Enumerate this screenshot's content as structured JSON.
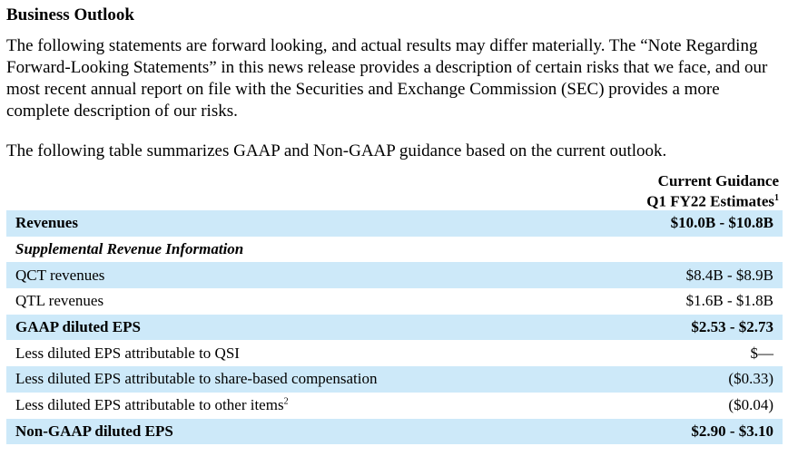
{
  "heading": "Business Outlook",
  "intro": "The following statements are forward looking, and actual results may differ materially.  The “Note Regarding Forward-Looking Statements” in this news release provides a description of certain risks that we face, and our most recent annual report on file with the Securities and Exchange Commission (SEC) provides a more complete description of our risks.",
  "summary": "The following table summarizes GAAP and Non-GAAP guidance based on the current outlook.",
  "column_header": {
    "line1": "Current Guidance",
    "line2": "Q1 FY22 Estimates",
    "footnote": "1"
  },
  "rows": [
    {
      "label": "Revenues",
      "value": "$10.0B - $10.8B"
    },
    {
      "label": "Supplemental Revenue Information",
      "value": ""
    },
    {
      "label": "QCT revenues",
      "value": "$8.4B - $8.9B"
    },
    {
      "label": "QTL revenues",
      "value": "$1.6B - $1.8B"
    },
    {
      "label": "GAAP diluted EPS",
      "value": "$2.53 - $2.73"
    },
    {
      "label": "Less diluted EPS attributable to QSI",
      "value": "$—"
    },
    {
      "label": "Less diluted EPS attributable to share-based compensation",
      "value": "($0.33)"
    },
    {
      "label": "Less diluted EPS attributable to other items",
      "footnote": "2",
      "value": "($0.04)"
    },
    {
      "label": "Non-GAAP diluted EPS",
      "value": "$2.90 - $3.10"
    }
  ],
  "colors": {
    "row_shade": "#cde9f9",
    "text": "#000000"
  }
}
